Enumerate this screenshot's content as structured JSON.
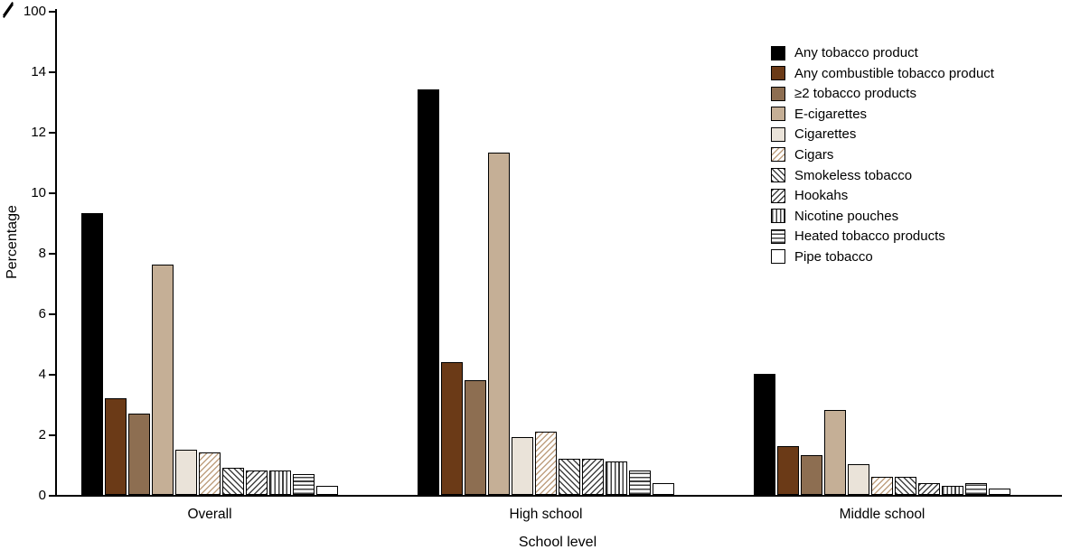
{
  "chart_data": {
    "type": "bar",
    "title": "",
    "xlabel": "School level",
    "ylabel": "Percentage",
    "unit": "%",
    "categories": [
      "Overall",
      "High school",
      "Middle school"
    ],
    "series": [
      {
        "name": "Any tobacco product",
        "values": [
          9.3,
          13.4,
          4.0
        ],
        "fill": "#000000",
        "pattern": "solid"
      },
      {
        "name": "Any combustible tobacco product",
        "values": [
          3.2,
          4.4,
          1.6
        ],
        "fill": "#6b3a17",
        "pattern": "solid"
      },
      {
        "name": "≥2 tobacco products",
        "values": [
          2.7,
          3.8,
          1.3
        ],
        "fill": "#8d6e51",
        "pattern": "solid"
      },
      {
        "name": "E-cigarettes",
        "values": [
          7.6,
          11.3,
          2.8
        ],
        "fill": "#c5af96",
        "pattern": "solid"
      },
      {
        "name": "Cigarettes",
        "values": [
          1.5,
          1.9,
          1.0
        ],
        "fill": "#eae3d9",
        "pattern": "solid"
      },
      {
        "name": "Cigars",
        "values": [
          1.4,
          2.1,
          0.6
        ],
        "fill": "#bfa080",
        "pattern": "diag-up"
      },
      {
        "name": "Smokeless tobacco",
        "values": [
          0.9,
          1.2,
          0.6
        ],
        "fill": "#404040",
        "pattern": "diag-down"
      },
      {
        "name": "Hookahs",
        "values": [
          0.8,
          1.2,
          0.4
        ],
        "fill": "#404040",
        "pattern": "diag-up"
      },
      {
        "name": "Nicotine pouches",
        "values": [
          0.8,
          1.1,
          0.3
        ],
        "fill": "#404040",
        "pattern": "vertical"
      },
      {
        "name": "Heated tobacco products",
        "values": [
          0.7,
          0.8,
          0.4
        ],
        "fill": "#404040",
        "pattern": "horizontal"
      },
      {
        "name": "Pipe tobacco",
        "values": [
          0.3,
          0.4,
          0.2
        ],
        "fill": "#ffffff",
        "pattern": "solid"
      }
    ],
    "y_ticks": [
      0,
      2,
      4,
      6,
      8,
      10,
      12,
      14
    ],
    "ylim": [
      0,
      14
    ],
    "y_axis_break": true,
    "y_break_label": "100",
    "legend_position": "top-right",
    "grid": false,
    "axis_color": "#000000",
    "background_color": "#ffffff"
  }
}
